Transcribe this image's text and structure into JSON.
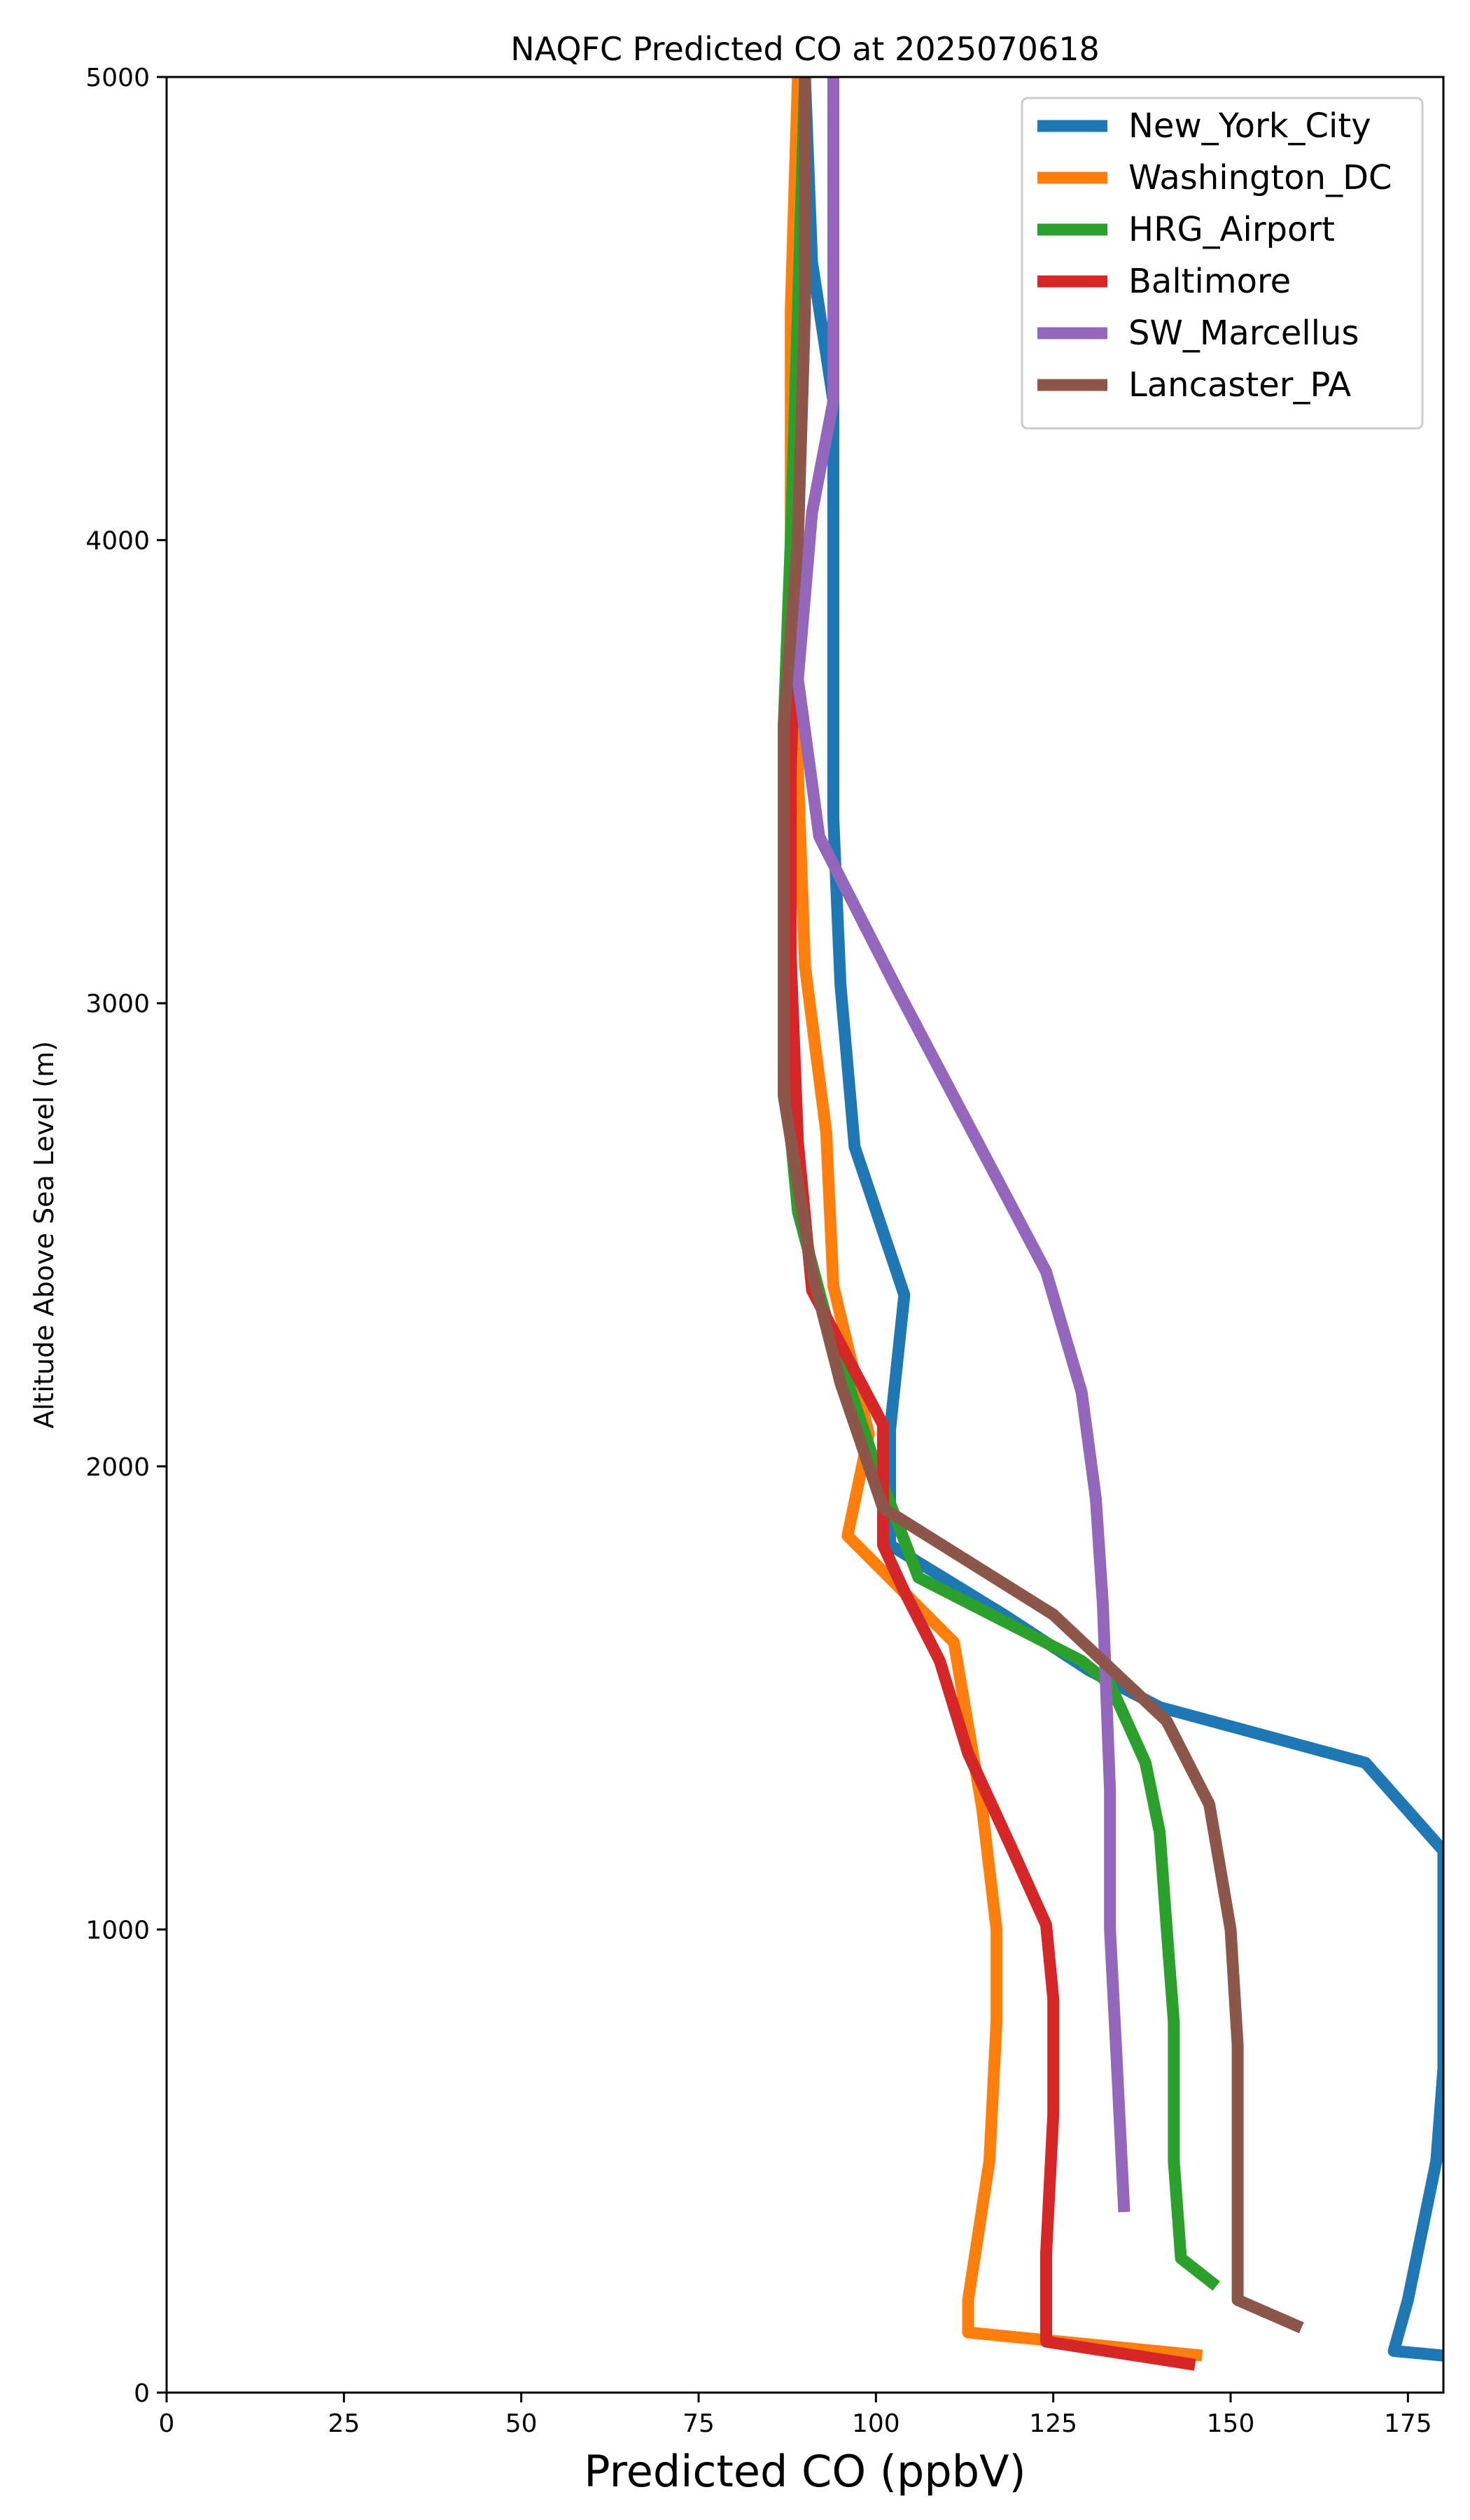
{
  "chart_data": {
    "type": "line",
    "title": "NAQFC Predicted CO at 2025070618",
    "xlabel": "Predicted CO (ppbV)",
    "ylabel": "Altitude Above Sea Level (m)",
    "xlim": [
      0,
      180
    ],
    "ylim": [
      0,
      5000
    ],
    "xticks": [
      0,
      25,
      50,
      75,
      100,
      125,
      150,
      175
    ],
    "yticks": [
      0,
      1000,
      2000,
      3000,
      4000,
      5000
    ],
    "grid": false,
    "legend_position": "top-right",
    "series": [
      {
        "name": "New_York_City",
        "color": "#1f77b4",
        "points": [
          [
            180,
            80
          ],
          [
            173,
            90
          ],
          [
            175,
            200
          ],
          [
            179,
            500
          ],
          [
            180,
            700
          ],
          [
            180,
            1000
          ],
          [
            180,
            1170
          ],
          [
            169,
            1360
          ],
          [
            140,
            1480
          ],
          [
            130,
            1560
          ],
          [
            118,
            1680
          ],
          [
            102,
            1830
          ],
          [
            102,
            2080
          ],
          [
            104,
            2370
          ],
          [
            97,
            2690
          ],
          [
            95,
            3040
          ],
          [
            94,
            3400
          ],
          [
            94,
            3850
          ],
          [
            94,
            4300
          ],
          [
            91,
            4600
          ],
          [
            90,
            5000
          ]
        ]
      },
      {
        "name": "Washington_DC",
        "color": "#ff7f0e",
        "points": [
          [
            146,
            80
          ],
          [
            113,
            130
          ],
          [
            113,
            200
          ],
          [
            116,
            500
          ],
          [
            117,
            800
          ],
          [
            117,
            1000
          ],
          [
            115,
            1260
          ],
          [
            111,
            1620
          ],
          [
            96,
            1850
          ],
          [
            99,
            2070
          ],
          [
            94,
            2390
          ],
          [
            93,
            2720
          ],
          [
            90,
            3080
          ],
          [
            89,
            3500
          ],
          [
            88,
            4000
          ],
          [
            88,
            4500
          ],
          [
            89,
            5000
          ]
        ]
      },
      {
        "name": "HRG_Airport",
        "color": "#2ca02c",
        "points": [
          [
            148,
            230
          ],
          [
            143,
            290
          ],
          [
            142,
            500
          ],
          [
            142,
            800
          ],
          [
            141,
            1000
          ],
          [
            140,
            1210
          ],
          [
            138,
            1360
          ],
          [
            133,
            1530
          ],
          [
            129,
            1580
          ],
          [
            106,
            1760
          ],
          [
            100,
            2000
          ],
          [
            93,
            2320
          ],
          [
            89,
            2550
          ],
          [
            87,
            2870
          ],
          [
            87,
            3200
          ],
          [
            87,
            3600
          ],
          [
            88,
            4000
          ],
          [
            89,
            4500
          ],
          [
            90,
            5000
          ]
        ]
      },
      {
        "name": "Baltimore",
        "color": "#d62728",
        "points": [
          [
            145,
            60
          ],
          [
            124,
            110
          ],
          [
            124,
            300
          ],
          [
            125,
            600
          ],
          [
            125,
            850
          ],
          [
            124,
            1010
          ],
          [
            119,
            1180
          ],
          [
            113,
            1380
          ],
          [
            109,
            1580
          ],
          [
            104,
            1730
          ],
          [
            101,
            1830
          ],
          [
            101,
            2090
          ],
          [
            91,
            2380
          ],
          [
            89,
            2700
          ],
          [
            88,
            3100
          ],
          [
            88,
            3500
          ],
          [
            89,
            4000
          ],
          [
            90,
            4500
          ],
          [
            90,
            5000
          ]
        ]
      },
      {
        "name": "SW_Marcellus",
        "color": "#9467bd",
        "points": [
          [
            135,
            390
          ],
          [
            134,
            700
          ],
          [
            133,
            1000
          ],
          [
            133,
            1300
          ],
          [
            132,
            1700
          ],
          [
            131,
            1930
          ],
          [
            129,
            2160
          ],
          [
            124,
            2420
          ],
          [
            103,
            3030
          ],
          [
            92,
            3360
          ],
          [
            89,
            3700
          ],
          [
            91,
            4060
          ],
          [
            94,
            4300
          ],
          [
            94,
            4600
          ],
          [
            94,
            5000
          ]
        ]
      },
      {
        "name": "Lancaster_PA",
        "color": "#8c564b",
        "points": [
          [
            160,
            140
          ],
          [
            151,
            200
          ],
          [
            151,
            500
          ],
          [
            151,
            750
          ],
          [
            150,
            1000
          ],
          [
            149,
            1090
          ],
          [
            147,
            1270
          ],
          [
            141,
            1450
          ],
          [
            125,
            1680
          ],
          [
            101,
            1910
          ],
          [
            95,
            2180
          ],
          [
            91,
            2420
          ],
          [
            87,
            2800
          ],
          [
            87,
            3130
          ],
          [
            87,
            3600
          ],
          [
            89,
            4000
          ],
          [
            90,
            4500
          ],
          [
            90,
            5000
          ]
        ]
      }
    ]
  }
}
